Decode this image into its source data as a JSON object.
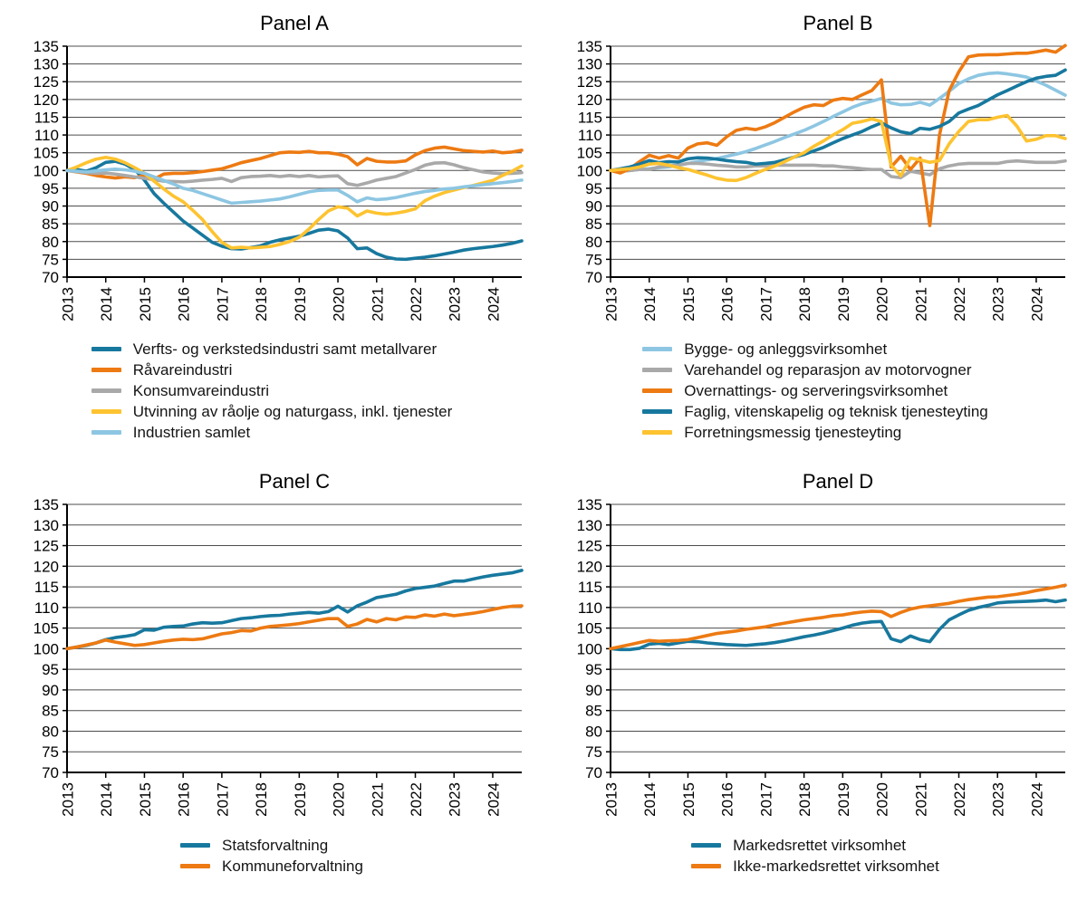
{
  "style": {
    "background": "#ffffff",
    "grid_color": "#4d4d4d",
    "axis_color": "#000000",
    "text_color": "#000000",
    "series_palette": {
      "dark_blue": "#17789e",
      "orange": "#ed7a12",
      "grey": "#a9a9a9",
      "yellow": "#fdc330",
      "light_blue": "#8dc6e2"
    }
  },
  "chart_data": [
    {
      "type": "line",
      "title": "Panel A",
      "x_start": 2013,
      "x_step": 0.25,
      "xticks": [
        2013,
        2014,
        2015,
        2016,
        2017,
        2018,
        2019,
        2020,
        2021,
        2022,
        2023,
        2024
      ],
      "ylim": [
        70,
        135
      ],
      "ytick_step": 5,
      "yticks": [
        70,
        75,
        80,
        85,
        90,
        95,
        100,
        105,
        110,
        115,
        120,
        125,
        130,
        135
      ],
      "grid": true,
      "legend_position": "bottom",
      "series": [
        {
          "name": "Verfts- og verkstedsindustri samt metallvarer",
          "color": "#17789e",
          "values": [
            100,
            100.3,
            99.8,
            100.8,
            102.3,
            102.6,
            101.8,
            100.3,
            97.3,
            93.5,
            90.8,
            88.3,
            85.8,
            83.8,
            81.8,
            79.8,
            78.7,
            78.0,
            77.9,
            78.3,
            78.8,
            79.8,
            80.5,
            81.0,
            81.5,
            82.3,
            83.2,
            83.5,
            83.0,
            81.0,
            78.0,
            78.2,
            76.6,
            75.6,
            75.1,
            75.0,
            75.3,
            75.6,
            76.0,
            76.5,
            77.0,
            77.6,
            78.0,
            78.3,
            78.6,
            79.0,
            79.5,
            80.2
          ]
        },
        {
          "name": "Råvareindustri",
          "color": "#ed7a12",
          "values": [
            100,
            99.6,
            99.2,
            98.6,
            98.2,
            97.9,
            98.2,
            98.0,
            98.6,
            97.6,
            99.0,
            99.2,
            99.2,
            99.4,
            99.7,
            100.1,
            100.5,
            101.3,
            102.2,
            102.8,
            103.4,
            104.2,
            105.0,
            105.2,
            105.1,
            105.4,
            105.0,
            105.0,
            104.6,
            103.9,
            101.6,
            103.4,
            102.6,
            102.4,
            102.4,
            102.7,
            104.4,
            105.6,
            106.3,
            106.6,
            106.1,
            105.6,
            105.4,
            105.2,
            105.5,
            105.0,
            105.2,
            105.7
          ]
        },
        {
          "name": "Konsumvareindustri",
          "color": "#a9a9a9",
          "values": [
            100,
            99.7,
            99.4,
            99.2,
            99.3,
            99.0,
            98.6,
            98.2,
            97.8,
            97.4,
            97.0,
            96.9,
            96.8,
            97.0,
            97.3,
            97.5,
            97.8,
            96.9,
            98.0,
            98.3,
            98.4,
            98.6,
            98.3,
            98.6,
            98.3,
            98.6,
            98.2,
            98.4,
            98.5,
            96.3,
            95.8,
            96.5,
            97.3,
            97.8,
            98.3,
            99.3,
            100.3,
            101.5,
            102.1,
            102.2,
            101.6,
            100.8,
            100.2,
            99.6,
            99.3,
            99.1,
            99.2,
            99.4
          ]
        },
        {
          "name": "Utvinning av råolje og naturgass, inkl. tjenester",
          "color": "#fdc330",
          "values": [
            100,
            101.0,
            102.2,
            103.2,
            103.7,
            103.2,
            102.2,
            100.8,
            99.2,
            97.0,
            94.8,
            92.8,
            91.2,
            88.8,
            86.2,
            82.8,
            79.8,
            78.2,
            78.4,
            78.2,
            78.4,
            78.6,
            79.2,
            80.0,
            81.2,
            83.5,
            86.2,
            88.6,
            89.8,
            89.4,
            87.2,
            88.6,
            88.0,
            87.7,
            88.0,
            88.5,
            89.2,
            91.5,
            92.8,
            93.8,
            94.5,
            95.2,
            95.8,
            96.5,
            97.2,
            98.6,
            99.8,
            101.3
          ]
        },
        {
          "name": "Industrien samlet",
          "color": "#8dc6e2",
          "values": [
            100,
            99.8,
            99.6,
            99.9,
            100.2,
            100.4,
            100.2,
            99.8,
            99.2,
            98.2,
            97.2,
            96.2,
            95.0,
            94.4,
            93.5,
            92.6,
            91.7,
            90.8,
            91.0,
            91.2,
            91.4,
            91.7,
            92.0,
            92.6,
            93.3,
            94.0,
            94.4,
            94.5,
            94.5,
            93.0,
            91.2,
            92.3,
            91.8,
            92.0,
            92.4,
            93.0,
            93.6,
            94.1,
            94.4,
            94.8,
            95.0,
            95.4,
            95.7,
            96.0,
            96.3,
            96.6,
            96.9,
            97.3
          ]
        }
      ]
    },
    {
      "type": "line",
      "title": "Panel B",
      "x_start": 2013,
      "x_step": 0.25,
      "xticks": [
        2013,
        2014,
        2015,
        2016,
        2017,
        2018,
        2019,
        2020,
        2021,
        2022,
        2023,
        2024
      ],
      "ylim": [
        70,
        135
      ],
      "ytick_step": 5,
      "yticks": [
        70,
        75,
        80,
        85,
        90,
        95,
        100,
        105,
        110,
        115,
        120,
        125,
        130,
        135
      ],
      "grid": true,
      "legend_position": "bottom",
      "series": [
        {
          "name": "Bygge- og anleggsvirksomhet",
          "color": "#8dc6e2",
          "values": [
            100,
            99.8,
            100.0,
            100.3,
            100.5,
            100.8,
            101.0,
            101.5,
            102.0,
            102.5,
            103.0,
            103.4,
            104.0,
            104.6,
            105.3,
            106.2,
            107.2,
            108.2,
            109.3,
            110.3,
            111.3,
            112.5,
            113.8,
            115.2,
            116.5,
            117.8,
            118.8,
            119.5,
            120.3,
            119.0,
            118.5,
            118.6,
            119.2,
            118.4,
            120.3,
            122.3,
            124.5,
            125.8,
            126.8,
            127.3,
            127.5,
            127.2,
            126.8,
            126.3,
            125.2,
            124.0,
            122.6,
            121.2
          ]
        },
        {
          "name": "Varehandel og reparasjon av motorvogner",
          "color": "#a9a9a9",
          "values": [
            100,
            99.8,
            100.0,
            100.3,
            100.3,
            101.0,
            101.3,
            101.5,
            102.0,
            102.0,
            101.8,
            101.5,
            101.3,
            101.0,
            101.0,
            101.3,
            101.3,
            101.5,
            101.5,
            101.5,
            101.5,
            101.5,
            101.3,
            101.3,
            101.0,
            100.8,
            100.5,
            100.3,
            100.3,
            98.3,
            98.0,
            99.8,
            99.3,
            98.8,
            100.5,
            101.3,
            101.8,
            102.0,
            102.0,
            102.0,
            102.0,
            102.5,
            102.7,
            102.5,
            102.3,
            102.3,
            102.3,
            102.7
          ]
        },
        {
          "name": "Overnattings- og serveringsvirksomhet",
          "color": "#ed7a12",
          "values": [
            100,
            99.3,
            100.5,
            102.5,
            104.3,
            103.5,
            104.2,
            103.5,
            106.3,
            107.5,
            107.8,
            107.1,
            109.5,
            111.3,
            111.9,
            111.5,
            112.3,
            113.5,
            115.0,
            116.5,
            117.8,
            118.5,
            118.3,
            119.8,
            120.3,
            120.0,
            121.3,
            122.5,
            125.5,
            101.0,
            104.0,
            100.3,
            103.5,
            84.5,
            110.0,
            122.5,
            127.8,
            132.0,
            132.5,
            132.6,
            132.6,
            132.8,
            133.0,
            133.0,
            133.4,
            133.9,
            133.3,
            135.2
          ]
        },
        {
          "name": "Faglig, vitenskapelig og teknisk tjenesteyting",
          "color": "#17789e",
          "values": [
            100,
            100.5,
            101.0,
            101.8,
            102.8,
            102.2,
            102.5,
            102.4,
            103.3,
            103.6,
            103.5,
            103.2,
            102.8,
            102.5,
            102.3,
            101.8,
            102.0,
            102.3,
            103.0,
            103.8,
            104.5,
            105.5,
            106.5,
            107.8,
            109.0,
            110.0,
            111.0,
            112.3,
            113.4,
            112.0,
            110.9,
            110.4,
            111.9,
            111.6,
            112.4,
            113.8,
            116.2,
            117.3,
            118.3,
            119.8,
            121.3,
            122.5,
            123.8,
            125.0,
            126.0,
            126.5,
            126.8,
            128.3
          ]
        },
        {
          "name": "Forretningsmessig tjenesteyting",
          "color": "#fdc330",
          "values": [
            100,
            100.3,
            100.5,
            101.0,
            101.8,
            102.0,
            101.5,
            100.8,
            100.3,
            99.5,
            98.7,
            97.8,
            97.3,
            97.2,
            98.0,
            99.2,
            100.3,
            101.3,
            102.5,
            103.8,
            105.0,
            106.8,
            108.3,
            110.0,
            111.5,
            113.3,
            113.8,
            114.5,
            113.8,
            101.5,
            98.5,
            103.5,
            103.0,
            102.3,
            102.8,
            107.5,
            111.0,
            113.8,
            114.3,
            114.3,
            115.0,
            115.5,
            112.5,
            108.3,
            108.8,
            109.8,
            109.8,
            109.0
          ]
        }
      ]
    },
    {
      "type": "line",
      "title": "Panel C",
      "x_start": 2013,
      "x_step": 0.25,
      "xticks": [
        2013,
        2014,
        2015,
        2016,
        2017,
        2018,
        2019,
        2020,
        2021,
        2022,
        2023,
        2024
      ],
      "ylim": [
        70,
        135
      ],
      "ytick_step": 5,
      "yticks": [
        70,
        75,
        80,
        85,
        90,
        95,
        100,
        105,
        110,
        115,
        120,
        125,
        130,
        135
      ],
      "grid": true,
      "legend_position": "bottom",
      "series": [
        {
          "name": "Statsforvaltning",
          "color": "#17789e",
          "values": [
            100,
            100.4,
            100.8,
            101.4,
            102.2,
            102.7,
            103.0,
            103.4,
            104.6,
            104.5,
            105.2,
            105.4,
            105.5,
            106.0,
            106.3,
            106.2,
            106.3,
            106.8,
            107.3,
            107.5,
            107.8,
            108.0,
            108.1,
            108.4,
            108.6,
            108.8,
            108.6,
            109.0,
            110.3,
            108.9,
            110.4,
            111.3,
            112.4,
            112.8,
            113.2,
            114.0,
            114.6,
            114.9,
            115.2,
            115.8,
            116.4,
            116.4,
            116.9,
            117.4,
            117.8,
            118.1,
            118.4,
            119.0
          ]
        },
        {
          "name": "Kommuneforvaltning",
          "color": "#ed7a12",
          "values": [
            100,
            100.4,
            100.9,
            101.4,
            102.1,
            101.6,
            101.2,
            100.8,
            101.0,
            101.4,
            101.8,
            102.1,
            102.3,
            102.2,
            102.4,
            103.0,
            103.6,
            103.9,
            104.4,
            104.3,
            105.0,
            105.4,
            105.6,
            105.8,
            106.1,
            106.5,
            106.9,
            107.3,
            107.3,
            105.4,
            106.0,
            107.1,
            106.5,
            107.3,
            107.0,
            107.7,
            107.6,
            108.2,
            107.9,
            108.4,
            108.0,
            108.3,
            108.6,
            109.0,
            109.5,
            110.0,
            110.3,
            110.4
          ]
        }
      ]
    },
    {
      "type": "line",
      "title": "Panel D",
      "x_start": 2013,
      "x_step": 0.25,
      "xticks": [
        2013,
        2014,
        2015,
        2016,
        2017,
        2018,
        2019,
        2020,
        2021,
        2022,
        2023,
        2024
      ],
      "ylim": [
        70,
        135
      ],
      "ytick_step": 5,
      "yticks": [
        70,
        75,
        80,
        85,
        90,
        95,
        100,
        105,
        110,
        115,
        120,
        125,
        130,
        135
      ],
      "grid": true,
      "legend_position": "bottom",
      "series": [
        {
          "name": "Markedsrettet virksomhet",
          "color": "#17789e",
          "values": [
            100,
            99.8,
            99.8,
            100.1,
            101.1,
            101.3,
            101.0,
            101.4,
            101.8,
            101.7,
            101.4,
            101.2,
            101.0,
            100.9,
            100.8,
            101.0,
            101.2,
            101.5,
            101.9,
            102.4,
            102.9,
            103.3,
            103.8,
            104.4,
            105.0,
            105.7,
            106.2,
            106.5,
            106.6,
            102.4,
            101.7,
            103.1,
            102.2,
            101.7,
            104.7,
            107.0,
            108.2,
            109.3,
            110.0,
            110.5,
            111.1,
            111.3,
            111.4,
            111.5,
            111.6,
            111.8,
            111.4,
            111.8
          ]
        },
        {
          "name": "Ikke-markedsrettet virksomhet",
          "color": "#ed7a12",
          "values": [
            100,
            100.5,
            101.0,
            101.5,
            102.0,
            101.8,
            101.9,
            102.0,
            102.2,
            102.7,
            103.2,
            103.7,
            104.0,
            104.3,
            104.7,
            105.0,
            105.3,
            105.8,
            106.2,
            106.6,
            107.0,
            107.3,
            107.6,
            108.0,
            108.2,
            108.6,
            108.9,
            109.1,
            109.0,
            107.8,
            108.8,
            109.6,
            110.1,
            110.4,
            110.7,
            111.0,
            111.5,
            111.9,
            112.2,
            112.5,
            112.6,
            112.9,
            113.2,
            113.6,
            114.1,
            114.5,
            114.9,
            115.4
          ]
        }
      ]
    }
  ]
}
